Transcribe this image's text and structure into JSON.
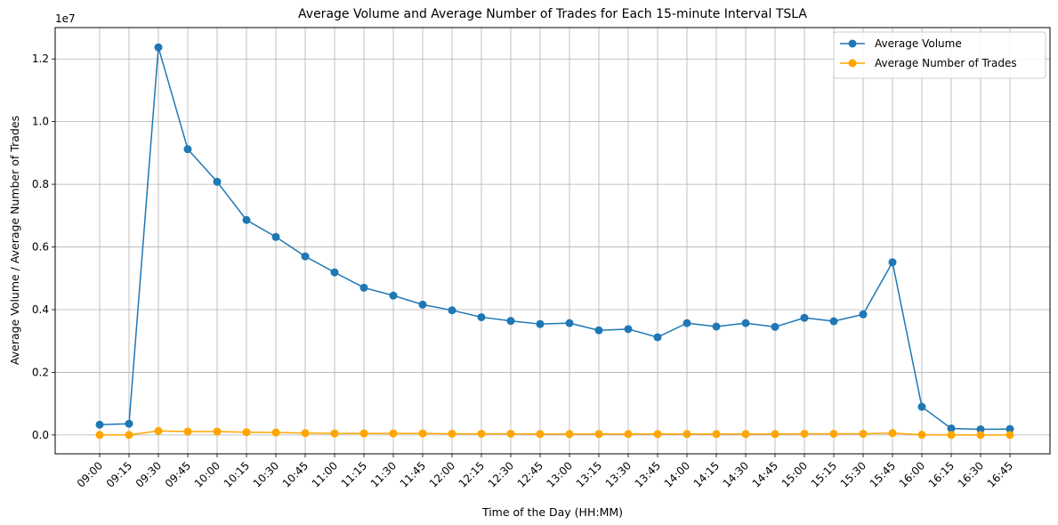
{
  "chart_data": {
    "type": "line",
    "title": "Average Volume and Average Number of Trades for Each 15-minute Interval TSLA",
    "xlabel": "Time of the Day (HH:MM)",
    "ylabel": "Average Volume / Average Number of Trades",
    "y_offset_text": "1e7",
    "y_scale_multiplier": 10000000,
    "ylim": [
      -0.06,
      1.3
    ],
    "yticks": [
      0.0,
      0.2,
      0.4,
      0.6,
      0.8,
      1.0,
      1.2
    ],
    "ytick_labels": [
      "0.0",
      "0.2",
      "0.4",
      "0.6",
      "0.8",
      "1.0",
      "1.2"
    ],
    "grid": true,
    "legend_position": "top-right",
    "categories": [
      "09:00",
      "09:15",
      "09:30",
      "09:45",
      "10:00",
      "10:15",
      "10:30",
      "10:45",
      "11:00",
      "11:15",
      "11:30",
      "11:45",
      "12:00",
      "12:15",
      "12:30",
      "12:45",
      "13:00",
      "13:15",
      "13:30",
      "13:45",
      "14:00",
      "14:15",
      "14:30",
      "14:45",
      "15:00",
      "15:15",
      "15:30",
      "15:45",
      "16:00",
      "16:15",
      "16:30",
      "16:45"
    ],
    "series": [
      {
        "name": "Average Volume",
        "color": "#1f77b4",
        "marker": "circle",
        "values": [
          0.033,
          0.036,
          1.237,
          0.912,
          0.808,
          0.686,
          0.632,
          0.57,
          0.519,
          0.47,
          0.445,
          0.416,
          0.398,
          0.376,
          0.364,
          0.354,
          0.357,
          0.334,
          0.338,
          0.312,
          0.357,
          0.346,
          0.357,
          0.345,
          0.374,
          0.363,
          0.385,
          0.551,
          0.09,
          0.021,
          0.018,
          0.019
        ]
      },
      {
        "name": "Average Number of Trades",
        "color": "#ffa500",
        "marker": "circle",
        "values": [
          0.0002,
          0.0003,
          0.013,
          0.011,
          0.011,
          0.009,
          0.008,
          0.006,
          0.005,
          0.005,
          0.005,
          0.005,
          0.004,
          0.004,
          0.004,
          0.003,
          0.003,
          0.003,
          0.003,
          0.003,
          0.003,
          0.003,
          0.003,
          0.003,
          0.004,
          0.004,
          0.004,
          0.006,
          0.001,
          0.0002,
          0.0001,
          0.0001
        ]
      }
    ]
  }
}
